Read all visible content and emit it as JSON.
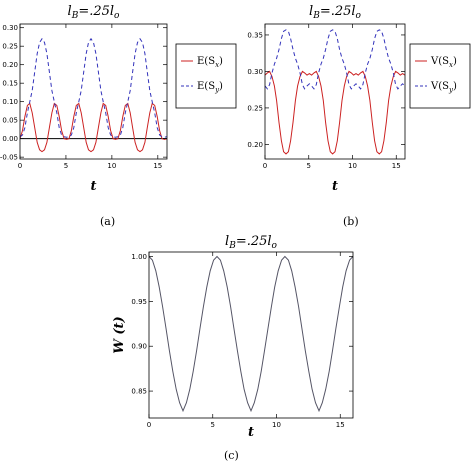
{
  "chart_data": [
    {
      "id": "a",
      "type": "line",
      "title": {
        "main": "l",
        "sub": "B",
        "rest": "=.25l",
        "sub2": "o"
      },
      "xlabel": "t",
      "ylabel": "",
      "xlim": [
        0,
        16
      ],
      "ylim": [
        -0.055,
        0.31
      ],
      "x_ticks": [
        0,
        5,
        10,
        15
      ],
      "y_ticks": [
        -0.05,
        0.0,
        0.05,
        0.1,
        0.15,
        0.2,
        0.25,
        0.3
      ],
      "y_tick_labels": [
        "-0.05",
        "0.00",
        "0.05",
        "0.10",
        "0.15",
        "0.20",
        "0.25",
        "0.30"
      ],
      "period": 5.33,
      "zero_line": true,
      "legend": [
        {
          "label_pre": "E(S",
          "label_sub": "x",
          "label_post": ")",
          "style": "solid",
          "color": "#cc2222"
        },
        {
          "label_pre": "E(S",
          "label_sub": "y",
          "label_post": ")",
          "style": "dashed",
          "color": "#3333bb"
        }
      ],
      "series": [
        {
          "name": "E(Sx)",
          "color": "#cc2222",
          "dashed": false,
          "x": [
            0,
            0.27,
            0.53,
            0.8,
            1.07,
            1.33,
            1.6,
            1.87,
            2.13,
            2.4,
            2.67,
            2.93,
            3.2,
            3.47,
            3.73,
            4.0,
            4.27,
            4.53,
            4.8,
            5.07,
            5.33
          ],
          "y": [
            0.0,
            0.022,
            0.06,
            0.09,
            0.095,
            0.07,
            0.03,
            -0.01,
            -0.03,
            -0.035,
            -0.03,
            -0.01,
            0.03,
            0.07,
            0.095,
            0.09,
            0.06,
            0.022,
            0.0,
            -0.002,
            0.0
          ]
        },
        {
          "name": "E(Sy)",
          "color": "#3333bb",
          "dashed": true,
          "x": [
            0,
            0.27,
            0.53,
            0.8,
            1.07,
            1.33,
            1.6,
            1.87,
            2.13,
            2.4,
            2.67,
            2.93,
            3.2,
            3.47,
            3.73,
            4.0,
            4.27,
            4.53,
            4.8,
            5.07,
            5.33
          ],
          "y": [
            0.005,
            0.01,
            0.03,
            0.07,
            0.1,
            0.13,
            0.18,
            0.23,
            0.26,
            0.27,
            0.26,
            0.23,
            0.18,
            0.13,
            0.1,
            0.07,
            0.03,
            0.01,
            0.005,
            0.004,
            0.005
          ]
        }
      ]
    },
    {
      "id": "b",
      "type": "line",
      "title": {
        "main": "l",
        "sub": "B",
        "rest": "=.25l",
        "sub2": "o"
      },
      "xlabel": "t",
      "ylabel": "",
      "xlim": [
        0,
        16
      ],
      "ylim": [
        0.18,
        0.365
      ],
      "x_ticks": [
        0,
        5,
        10,
        15
      ],
      "y_ticks": [
        0.2,
        0.25,
        0.3,
        0.35
      ],
      "y_tick_labels": [
        "0.20",
        "0.25",
        "0.30",
        "0.35"
      ],
      "period": 5.33,
      "zero_line": false,
      "legend": [
        {
          "label_pre": "V(S",
          "label_sub": "x",
          "label_post": ")",
          "style": "solid",
          "color": "#cc2222"
        },
        {
          "label_pre": "V(S",
          "label_sub": "y",
          "label_post": ")",
          "style": "dashed",
          "color": "#3333bb"
        }
      ],
      "series": [
        {
          "name": "V(Sx)",
          "color": "#cc2222",
          "dashed": false,
          "x": [
            0,
            0.27,
            0.53,
            0.8,
            1.07,
            1.33,
            1.6,
            1.87,
            2.13,
            2.4,
            2.67,
            2.93,
            3.2,
            3.47,
            3.73,
            4.0,
            4.27,
            4.53,
            4.8,
            5.07,
            5.33
          ],
          "y": [
            0.295,
            0.298,
            0.3,
            0.293,
            0.28,
            0.26,
            0.23,
            0.205,
            0.19,
            0.187,
            0.19,
            0.205,
            0.23,
            0.26,
            0.28,
            0.293,
            0.3,
            0.298,
            0.295,
            0.297,
            0.295
          ]
        },
        {
          "name": "V(Sy)",
          "color": "#3333bb",
          "dashed": true,
          "x": [
            0,
            0.27,
            0.53,
            0.8,
            1.07,
            1.33,
            1.6,
            1.87,
            2.13,
            2.4,
            2.67,
            2.93,
            3.2,
            3.47,
            3.73,
            4.0,
            4.27,
            4.53,
            4.8,
            5.07,
            5.33
          ],
          "y": [
            0.28,
            0.276,
            0.282,
            0.298,
            0.31,
            0.318,
            0.33,
            0.345,
            0.355,
            0.357,
            0.355,
            0.345,
            0.33,
            0.318,
            0.31,
            0.298,
            0.282,
            0.276,
            0.28,
            0.283,
            0.28
          ]
        }
      ]
    },
    {
      "id": "c",
      "type": "line",
      "title": {
        "main": "l",
        "sub": "B",
        "rest": "=.25l",
        "sub2": "o"
      },
      "xlabel": "t",
      "ylabel": "W (t)",
      "xlim": [
        0,
        16
      ],
      "ylim": [
        0.82,
        1.005
      ],
      "x_ticks": [
        0,
        5,
        10,
        15
      ],
      "y_ticks": [
        0.85,
        0.9,
        0.95,
        1.0
      ],
      "y_tick_labels": [
        "0.85",
        "0.90",
        "0.95",
        "1.00"
      ],
      "period": 5.33,
      "zero_line": false,
      "legend": [],
      "series": [
        {
          "name": "W(t)",
          "color": "#555566",
          "dashed": false,
          "x": [
            0,
            0.27,
            0.53,
            0.8,
            1.07,
            1.33,
            1.6,
            1.87,
            2.13,
            2.4,
            2.67,
            2.93,
            3.2,
            3.47,
            3.73,
            4.0,
            4.27,
            4.53,
            4.8,
            5.07,
            5.33
          ],
          "y": [
            1.0,
            0.996,
            0.984,
            0.966,
            0.944,
            0.92,
            0.895,
            0.872,
            0.852,
            0.837,
            0.828,
            0.837,
            0.852,
            0.872,
            0.895,
            0.92,
            0.944,
            0.966,
            0.984,
            0.996,
            1.0
          ]
        }
      ]
    }
  ],
  "captions": {
    "a": "(a)",
    "b": "(b)",
    "c": "(c)"
  }
}
